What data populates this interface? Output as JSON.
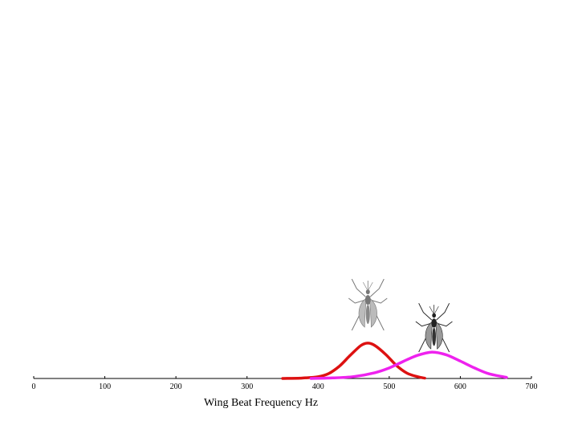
{
  "chart_data": {
    "type": "line",
    "title": "",
    "xlabel": "Wing Beat Frequency Hz",
    "ylabel": "",
    "xlim": [
      0,
      700
    ],
    "x_ticks": [
      "0",
      "100",
      "200",
      "300",
      "400",
      "500",
      "600",
      "700"
    ],
    "grid": false,
    "legend": "none",
    "series": [
      {
        "color": "#dd1111",
        "icon": "mosquito-icon",
        "x": [
          350,
          375,
          400,
          415,
          430,
          445,
          460,
          470,
          480,
          495,
          510,
          525,
          540,
          550
        ],
        "y": [
          0.0,
          0.01,
          0.05,
          0.14,
          0.35,
          0.65,
          0.93,
          1.0,
          0.93,
          0.68,
          0.37,
          0.15,
          0.05,
          0.01
        ]
      },
      {
        "color": "#ee22ee",
        "icon": "mosquito-icon",
        "x": [
          390,
          420,
          450,
          480,
          500,
          520,
          540,
          560,
          580,
          600,
          620,
          640,
          665
        ],
        "y": [
          0.0,
          0.02,
          0.07,
          0.22,
          0.4,
          0.65,
          0.88,
          1.0,
          0.9,
          0.66,
          0.4,
          0.18,
          0.04
        ]
      }
    ],
    "peak_height": [
      0.98,
      0.73
    ]
  }
}
